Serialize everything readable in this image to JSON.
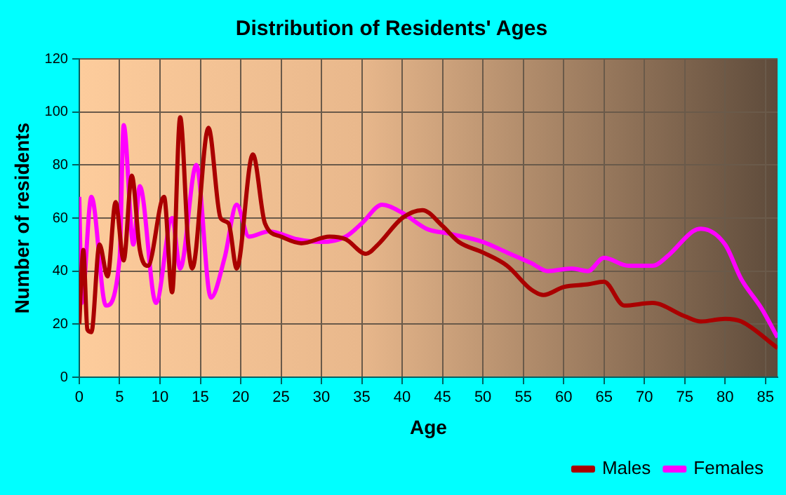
{
  "chart_data": {
    "type": "line",
    "title": "Distribution of Residents' Ages",
    "xlabel": "Age",
    "ylabel": "Number of residents",
    "xlim": [
      0,
      86.5
    ],
    "xticks": [
      0,
      5,
      10,
      15,
      20,
      25,
      30,
      35,
      40,
      45,
      50,
      55,
      60,
      65,
      70,
      75,
      80,
      85
    ],
    "ylim": [
      0,
      120
    ],
    "yticks": [
      0,
      20,
      40,
      60,
      80,
      100,
      120
    ],
    "grid": true,
    "legend": "bottom right",
    "marker": "none",
    "line_style": "solid",
    "series": [
      {
        "name": "Males",
        "color": "#aa0000",
        "x": [
          0,
          0.5,
          1,
          1.5,
          2.5,
          3.5,
          4.5,
          5.5,
          6.5,
          7.5,
          8.5,
          10.5,
          11.5,
          12.5,
          13.5,
          14,
          16,
          17.5,
          18.5,
          19.5,
          21.5,
          23,
          25,
          27.5,
          31,
          33,
          35.5,
          37,
          40,
          42.5,
          45,
          47,
          50,
          53,
          56,
          57.5,
          60,
          63,
          65,
          67.5,
          71,
          75,
          77,
          80,
          82,
          86.5
        ],
        "values": [
          20,
          48,
          18,
          17,
          50,
          38,
          66,
          44,
          76,
          48,
          42,
          68,
          32,
          98,
          50,
          41,
          94,
          60,
          58,
          41,
          84,
          58,
          53,
          50.5,
          53,
          52,
          46.5,
          50,
          60,
          63,
          57,
          51,
          47,
          42,
          33,
          31,
          34,
          35,
          36,
          27,
          28,
          23,
          21,
          22,
          21,
          11
        ]
      },
      {
        "name": "Females",
        "color": "#ff00ff",
        "x": [
          0,
          0.3,
          1.5,
          3.3,
          5,
          5.5,
          6.7,
          7.5,
          9.5,
          11.5,
          12.5,
          14.5,
          16.3,
          18,
          19.5,
          21,
          23.5,
          27,
          30,
          33,
          35,
          37.5,
          40,
          43,
          46,
          50,
          53,
          56,
          58,
          61,
          63,
          65,
          68,
          71,
          73,
          76,
          77,
          80,
          82,
          84.5,
          86.5
        ],
        "values": [
          68,
          28,
          68,
          27,
          45,
          95,
          50,
          72,
          28,
          60,
          41,
          80,
          30,
          45,
          65,
          53,
          55,
          52,
          51,
          53,
          58,
          65,
          62,
          56,
          54,
          51,
          47,
          43,
          40,
          41,
          40,
          45,
          42,
          42,
          46,
          55,
          56,
          50,
          37,
          26,
          15
        ]
      }
    ]
  }
}
